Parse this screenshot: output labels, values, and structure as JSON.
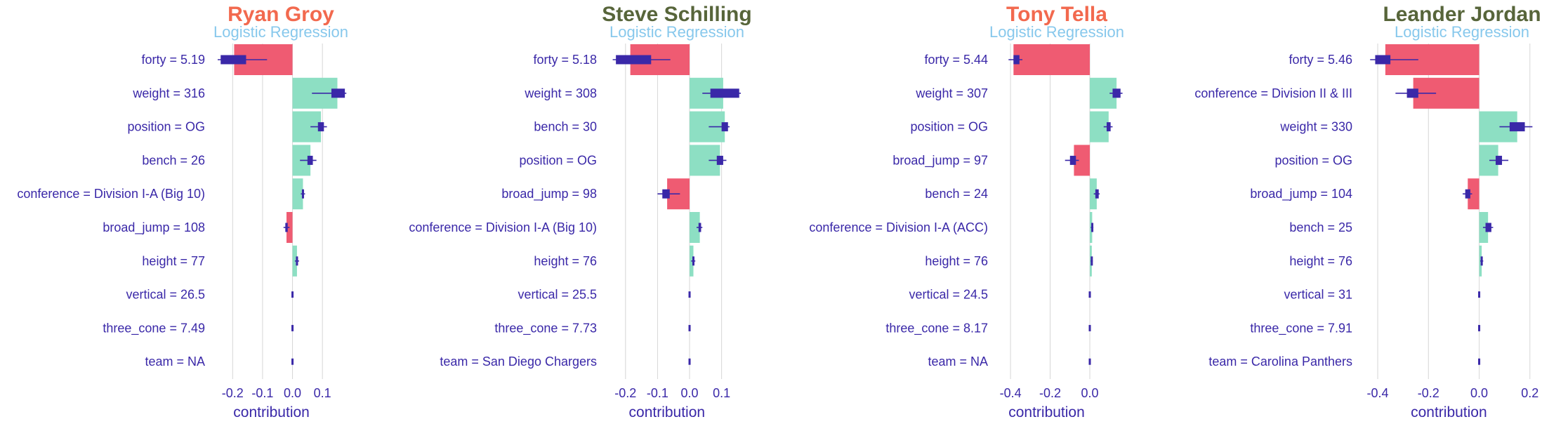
{
  "colors": {
    "positive": "#8ddfc3",
    "negative": "#ef5b72",
    "whisker": "#3a28a8",
    "text": "#3a28a8",
    "grid": "#d6d6d6",
    "subtitle": "#87c8ec",
    "title_red": "#f2694e",
    "title_green": "#57653a"
  },
  "chart_data": [
    {
      "type": "bar",
      "title": "Ryan Groy",
      "title_color": "#f2694e",
      "subtitle": "Logistic Regression",
      "xlabel": "contribution",
      "xlim": [
        -0.25,
        0.17
      ],
      "ticks": [
        -0.2,
        -0.1,
        0.0,
        0.1
      ],
      "tick_labels": [
        "-0.2",
        "-0.1",
        "0.0",
        "0.1"
      ],
      "categories": [
        "forty = 5.19",
        "weight = 316",
        "position = OG",
        "bench = 26",
        "conference = Division I-A (Big 10)",
        "broad_jump = 108",
        "height = 77",
        "vertical = 26.5",
        "three_cone = 7.49",
        "team = NA"
      ],
      "values": [
        -0.195,
        0.15,
        0.095,
        0.06,
        0.035,
        -0.02,
        0.015,
        0.0,
        0.0,
        0.0
      ],
      "box": [
        [
          -0.24,
          -0.155
        ],
        [
          0.13,
          0.175
        ],
        [
          0.085,
          0.105
        ],
        [
          0.05,
          0.068
        ],
        [
          0.032,
          0.038
        ],
        [
          -0.024,
          -0.016
        ],
        [
          0.012,
          0.018
        ],
        [
          -0.002,
          0.002
        ],
        [
          -0.002,
          0.002
        ],
        [
          -0.002,
          0.002
        ]
      ],
      "whisker": [
        [
          -0.25,
          -0.085
        ],
        [
          0.065,
          0.18
        ],
        [
          0.06,
          0.115
        ],
        [
          0.025,
          0.08
        ],
        [
          0.028,
          0.042
        ],
        [
          -0.03,
          -0.01
        ],
        [
          0.008,
          0.022
        ],
        [
          -0.002,
          0.002
        ],
        [
          -0.002,
          0.002
        ],
        [
          -0.002,
          0.002
        ]
      ]
    },
    {
      "type": "bar",
      "title": "Steve Schilling",
      "title_color": "#57653a",
      "subtitle": "Logistic Regression",
      "xlabel": "contribution",
      "xlim": [
        -0.25,
        0.16
      ],
      "ticks": [
        -0.2,
        -0.1,
        0.0,
        0.1
      ],
      "tick_labels": [
        "-0.2",
        "-0.1",
        "0.0",
        "0.1"
      ],
      "categories": [
        "forty = 5.18",
        "weight = 308",
        "bench = 30",
        "position = OG",
        "broad_jump = 98",
        "conference = Division I-A (Big 10)",
        "height = 76",
        "vertical = 25.5",
        "three_cone = 7.73",
        "team = San Diego Chargers"
      ],
      "values": [
        -0.185,
        0.105,
        0.11,
        0.095,
        -0.07,
        0.032,
        0.012,
        0.0,
        0.0,
        0.0
      ],
      "box": [
        [
          -0.23,
          -0.12
        ],
        [
          0.065,
          0.155
        ],
        [
          0.1,
          0.12
        ],
        [
          0.085,
          0.105
        ],
        [
          -0.085,
          -0.062
        ],
        [
          0.028,
          0.036
        ],
        [
          0.009,
          0.015
        ],
        [
          -0.002,
          0.002
        ],
        [
          -0.002,
          0.002
        ],
        [
          -0.002,
          0.002
        ]
      ],
      "whisker": [
        [
          -0.24,
          -0.06
        ],
        [
          0.04,
          0.16
        ],
        [
          0.06,
          0.125
        ],
        [
          0.06,
          0.115
        ],
        [
          -0.1,
          -0.03
        ],
        [
          0.022,
          0.04
        ],
        [
          0.005,
          0.018
        ],
        [
          -0.002,
          0.002
        ],
        [
          -0.002,
          0.002
        ],
        [
          -0.002,
          0.002
        ]
      ]
    },
    {
      "type": "bar",
      "title": "Tony Tella",
      "title_color": "#f2694e",
      "subtitle": "Logistic Regression",
      "xlabel": "contribution",
      "xlim": [
        -0.45,
        0.17
      ],
      "ticks": [
        -0.4,
        -0.2,
        0.0
      ],
      "tick_labels": [
        "-0.4",
        "-0.2",
        "0.0"
      ],
      "categories": [
        "forty = 5.44",
        "weight = 307",
        "position = OG",
        "broad_jump = 97",
        "bench = 24",
        "conference = Division I-A (ACC)",
        "height = 76",
        "vertical = 24.5",
        "three_cone = 8.17",
        "team = NA"
      ],
      "values": [
        -0.385,
        0.135,
        0.095,
        -0.08,
        0.035,
        0.012,
        0.01,
        0.0,
        0.0,
        0.0
      ],
      "box": [
        [
          -0.385,
          -0.355
        ],
        [
          0.115,
          0.155
        ],
        [
          0.085,
          0.105
        ],
        [
          -0.1,
          -0.07
        ],
        [
          0.028,
          0.045
        ],
        [
          0.009,
          0.016
        ],
        [
          0.007,
          0.013
        ],
        [
          -0.002,
          0.002
        ],
        [
          -0.002,
          0.002
        ],
        [
          -0.002,
          0.002
        ]
      ],
      "whisker": [
        [
          -0.41,
          -0.34
        ],
        [
          0.1,
          0.165
        ],
        [
          0.07,
          0.115
        ],
        [
          -0.125,
          -0.055
        ],
        [
          0.02,
          0.05
        ],
        [
          0.005,
          0.018
        ],
        [
          0.004,
          0.015
        ],
        [
          -0.002,
          0.002
        ],
        [
          -0.002,
          0.002
        ],
        [
          -0.002,
          0.002
        ]
      ]
    },
    {
      "type": "bar",
      "title": "Leander Jordan",
      "title_color": "#57653a",
      "subtitle": "Logistic Regression",
      "xlabel": "contribution",
      "xlim": [
        -0.45,
        0.22
      ],
      "ticks": [
        -0.4,
        -0.2,
        0.0,
        0.2
      ],
      "tick_labels": [
        "-0.4",
        "-0.2",
        "0.0",
        "0.2"
      ],
      "categories": [
        "forty = 5.46",
        "conference = Division II & III",
        "weight = 330",
        "position = OG",
        "broad_jump = 104",
        "bench = 25",
        "height = 76",
        "vertical = 31",
        "three_cone = 7.91",
        "team = Carolina Panthers"
      ],
      "values": [
        -0.37,
        -0.26,
        0.15,
        0.075,
        -0.045,
        0.035,
        0.01,
        0.0,
        0.0,
        0.0
      ],
      "box": [
        [
          -0.41,
          -0.35
        ],
        [
          -0.285,
          -0.24
        ],
        [
          0.12,
          0.18
        ],
        [
          0.065,
          0.09
        ],
        [
          -0.055,
          -0.035
        ],
        [
          0.025,
          0.048
        ],
        [
          0.007,
          0.013
        ],
        [
          -0.002,
          0.002
        ],
        [
          -0.002,
          0.002
        ],
        [
          -0.002,
          0.002
        ]
      ],
      "whisker": [
        [
          -0.43,
          -0.24
        ],
        [
          -0.33,
          -0.17
        ],
        [
          0.08,
          0.21
        ],
        [
          0.04,
          0.115
        ],
        [
          -0.065,
          -0.028
        ],
        [
          0.015,
          0.055
        ],
        [
          0.004,
          0.016
        ],
        [
          -0.002,
          0.002
        ],
        [
          -0.002,
          0.002
        ],
        [
          -0.002,
          0.002
        ]
      ]
    }
  ]
}
